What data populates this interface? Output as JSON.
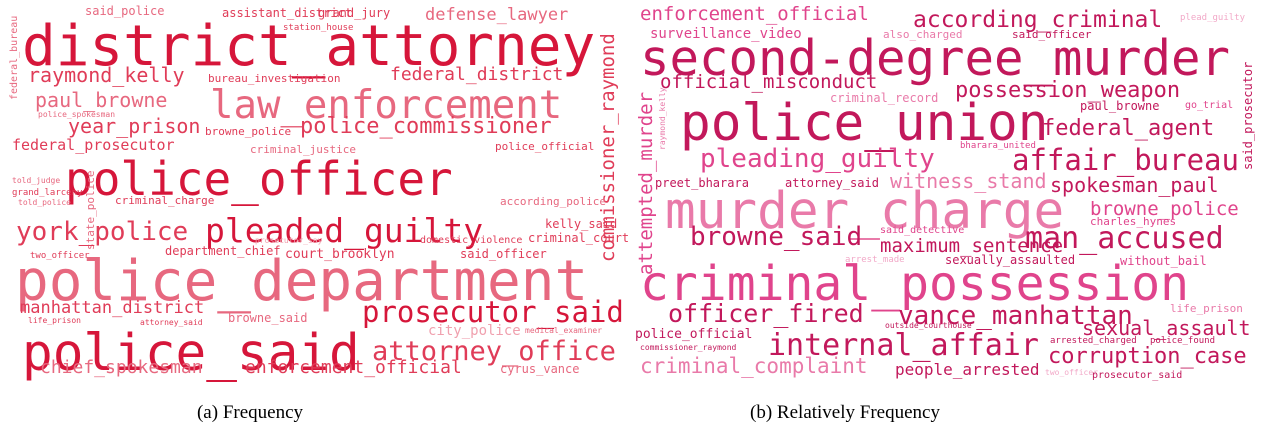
{
  "panels": [
    {
      "caption": "(a) Frequency",
      "words": [
        "said_police",
        "assistant_district",
        "grand_jury",
        "defense_lawyer",
        "station_house",
        "district_attorney",
        "federal_bureau",
        "raymond_kelly",
        "bureau_investigation",
        "federal_district",
        "law_enforcement",
        "paul_browne",
        "police_spokesman",
        "year_prison",
        "browne_police",
        "police_commissioner",
        "federal_prosecutor",
        "criminal_justice",
        "police_official",
        "commissioner_raymond",
        "police_officer",
        "told_judge",
        "grand_larceny",
        "told_police",
        "state_police",
        "criminal_charge",
        "according_police",
        "pleaded_guilty",
        "york_police",
        "kelly_said",
        "department_chief",
        "criminal_court",
        "domestic_violence",
        "prosecutor_say",
        "two_officer",
        "court_brooklyn",
        "said_officer",
        "police_department",
        "manhattan_district",
        "life_prison",
        "attorney_said",
        "browne_said",
        "prosecutor_said",
        "city_police",
        "medical_examiner",
        "police_said",
        "attorney_office",
        "chief_spokesman",
        "enforcement_official",
        "cyrus_vance"
      ]
    },
    {
      "caption": "(b) Relatively Frequency",
      "words": [
        "enforcement_official",
        "according_criminal",
        "plead_guilty",
        "surveillance_video",
        "also_charged",
        "said_officer",
        "second-degree_murder",
        "said_prosecutor",
        "official_misconduct",
        "criminal_record",
        "possession_weapon",
        "paul_browne",
        "go_trial",
        "raymond_kelly",
        "attempted_murder",
        "police_union",
        "bharara_united",
        "federal_agent",
        "pleading_guilty",
        "affair_bureau",
        "preet_bharara",
        "attorney_said",
        "witness_stand",
        "spokesman_paul",
        "murder_charge",
        "charles_hynes",
        "browne_police",
        "said_detective",
        "browne_said",
        "maximum_sentence",
        "man_accused",
        "arrest_made",
        "sexually_assaulted",
        "without_bail",
        "criminal_possession",
        "life_prison",
        "officer_fired",
        "vance_manhattan",
        "sexual_assault",
        "outside_courthouse",
        "police_official",
        "internal_affair",
        "arrested_charged",
        "police_found",
        "corruption_case",
        "commissioner_raymond",
        "criminal_complaint",
        "people_arrested",
        "two_officer",
        "prosecutor_said"
      ]
    }
  ]
}
